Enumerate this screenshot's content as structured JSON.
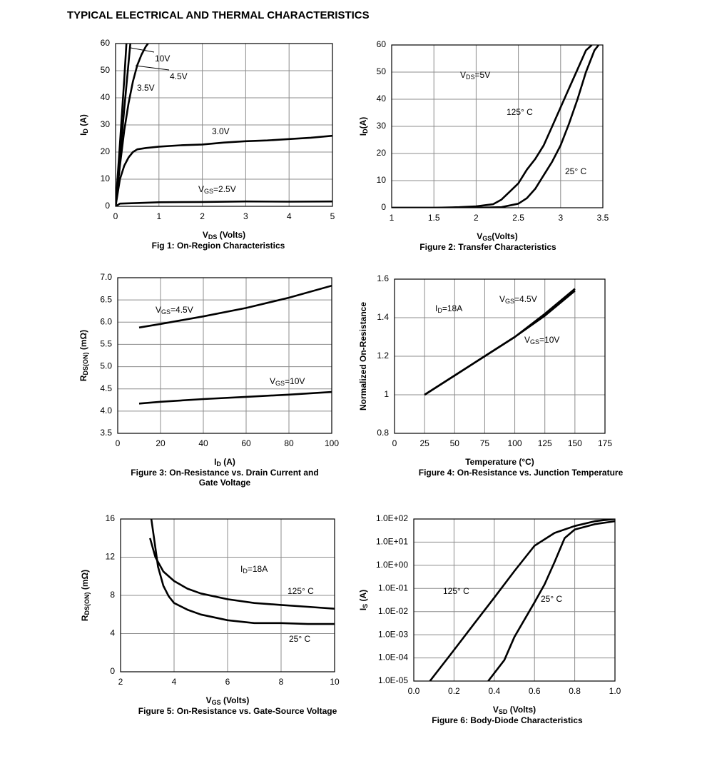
{
  "title": "TYPICAL ELECTRICAL AND THERMAL CHARACTERISTICS",
  "chart_data": [
    {
      "type": "line",
      "title": [
        "Fig 1: On-Region Characteristics"
      ],
      "xlabel": [
        "V",
        "DS",
        " (Volts)"
      ],
      "ylabel": [
        "I",
        "D",
        " (A)"
      ],
      "xlim": [
        0,
        5
      ],
      "ylim": [
        0,
        60
      ],
      "xticks": [
        0,
        1,
        2,
        3,
        4,
        5
      ],
      "yticks": [
        0,
        10,
        20,
        30,
        40,
        50,
        60
      ],
      "grid": true,
      "series": [
        {
          "name": [
            "10V"
          ],
          "color": "#000000",
          "x": [
            0,
            0.1,
            0.2,
            0.25
          ],
          "values": [
            0,
            23,
            47,
            60
          ]
        },
        {
          "name": [
            "4.5V"
          ],
          "color": "#000000",
          "x": [
            0,
            0.1,
            0.2,
            0.3,
            0.34
          ],
          "values": [
            0,
            18,
            36,
            53,
            60
          ]
        },
        {
          "name": [
            "3.5V"
          ],
          "color": "#000000",
          "x": [
            0,
            0.1,
            0.2,
            0.3,
            0.4,
            0.5,
            0.6,
            0.7,
            0.75
          ],
          "values": [
            0,
            15,
            28,
            38,
            46,
            52,
            56,
            59,
            60
          ]
        },
        {
          "name": [
            "3.0V"
          ],
          "color": "#000000",
          "x": [
            0,
            0.1,
            0.2,
            0.3,
            0.4,
            0.5,
            0.7,
            1,
            1.5,
            2,
            2.5,
            3,
            3.5,
            4,
            4.5,
            5
          ],
          "values": [
            0,
            10,
            15,
            18,
            20,
            21,
            21.5,
            22,
            22.5,
            22.8,
            23.5,
            24,
            24.3,
            24.8,
            25.3,
            26
          ]
        },
        {
          "name": [
            "V",
            "GS",
            "=2.5V"
          ],
          "color": "#000000",
          "x": [
            0,
            0.1,
            0.5,
            1,
            2,
            3,
            4,
            5
          ],
          "values": [
            0,
            1,
            1.2,
            1.5,
            1.6,
            1.8,
            1.7,
            1.8
          ]
        }
      ]
    },
    {
      "type": "line",
      "title": [
        "Figure 2: Transfer Characteristics"
      ],
      "xlabel": [
        "V",
        "GS",
        "(Volts)"
      ],
      "ylabel": [
        "I",
        "D",
        "(A)"
      ],
      "xlim": [
        1,
        3.5
      ],
      "ylim": [
        0,
        60
      ],
      "xticks": [
        1,
        1.5,
        2,
        2.5,
        3,
        3.5
      ],
      "yticks": [
        0,
        10,
        20,
        30,
        40,
        50,
        60
      ],
      "grid": true,
      "annotations": [
        [
          "V",
          "DS",
          "=5V"
        ]
      ],
      "series": [
        {
          "name": [
            "125° C"
          ],
          "color": "#000000",
          "x": [
            1,
            1.5,
            1.8,
            2,
            2.2,
            2.3,
            2.4,
            2.5,
            2.6,
            2.7,
            2.8,
            2.9,
            3,
            3.1,
            3.2,
            3.3,
            3.37
          ],
          "values": [
            0,
            0,
            0.2,
            0.5,
            1.3,
            3,
            6,
            9,
            14,
            18,
            23,
            30,
            37,
            44,
            51,
            58,
            60
          ]
        },
        {
          "name": [
            "25° C"
          ],
          "color": "#000000",
          "x": [
            1,
            2,
            2.3,
            2.5,
            2.6,
            2.7,
            2.8,
            2.9,
            3,
            3.1,
            3.2,
            3.3,
            3.4,
            3.45
          ],
          "values": [
            0,
            0,
            0.2,
            1.5,
            3.5,
            7,
            12,
            17,
            23,
            31,
            40,
            50,
            58,
            60
          ]
        }
      ]
    },
    {
      "type": "line",
      "title": [
        "Figure 3: On-Resistance vs. Drain Current and",
        "Gate Voltage"
      ],
      "xlabel": [
        "I",
        "D",
        " (A)"
      ],
      "ylabel": [
        "R",
        "DS(ON)",
        " (mΩ)"
      ],
      "xlim": [
        0,
        100
      ],
      "ylim": [
        3.5,
        7.0
      ],
      "xticks": [
        0,
        20,
        40,
        60,
        80,
        100
      ],
      "yticks": [
        3.5,
        {
          "value": 4.0,
          "label": "4.0"
        },
        4.5,
        {
          "value": 5.0,
          "label": "5.0"
        },
        5.5,
        {
          "value": 6.0,
          "label": "6.0"
        },
        6.5,
        {
          "value": 7.0,
          "label": "7.0"
        }
      ],
      "grid": true,
      "series": [
        {
          "name": [
            "V",
            "GS",
            "=4.5V"
          ],
          "color": "#000000",
          "x": [
            10,
            20,
            40,
            60,
            80,
            100
          ],
          "values": [
            5.88,
            5.96,
            6.13,
            6.32,
            6.55,
            6.82
          ]
        },
        {
          "name": [
            "V",
            "GS",
            "=10V"
          ],
          "color": "#000000",
          "x": [
            10,
            20,
            40,
            60,
            80,
            100
          ],
          "values": [
            4.17,
            4.21,
            4.27,
            4.32,
            4.37,
            4.43
          ]
        }
      ]
    },
    {
      "type": "line",
      "title": [
        "Figure 4: On-Resistance vs. Junction Temperature"
      ],
      "xlabel": [
        "Temperature (°C)"
      ],
      "ylabel": [
        "Normalized On-Resistance"
      ],
      "xlim": [
        0,
        175
      ],
      "ylim": [
        0.8,
        1.6
      ],
      "xticks": [
        0,
        25,
        50,
        75,
        100,
        125,
        150,
        175
      ],
      "yticks": [
        0.8,
        1,
        1.2,
        1.4,
        1.6
      ],
      "grid": true,
      "annotations": [
        [
          "I",
          "D",
          "=18A"
        ]
      ],
      "series": [
        {
          "name": [
            "V",
            "GS",
            "=4.5V"
          ],
          "color": "#000000",
          "x": [
            25,
            50,
            75,
            100,
            125,
            150
          ],
          "values": [
            1.0,
            1.1,
            1.2,
            1.3,
            1.42,
            1.55
          ]
        },
        {
          "name": [
            "V",
            "GS",
            "=10V"
          ],
          "color": "#000000",
          "x": [
            25,
            50,
            75,
            100,
            125,
            150
          ],
          "values": [
            1.0,
            1.1,
            1.2,
            1.3,
            1.41,
            1.54
          ]
        }
      ]
    },
    {
      "type": "line",
      "title": [
        "Figure 5: On-Resistance vs. Gate-Source Voltage"
      ],
      "xlabel": [
        "V",
        "GS",
        " (Volts)"
      ],
      "ylabel": [
        "R",
        "DS(ON)",
        " (mΩ)"
      ],
      "xlim": [
        2,
        10
      ],
      "ylim": [
        0,
        16
      ],
      "xticks": [
        2,
        4,
        6,
        8,
        10
      ],
      "yticks": [
        0,
        4,
        8,
        12,
        16
      ],
      "grid": true,
      "annotations": [
        [
          "I",
          "D",
          "=18A"
        ]
      ],
      "series": [
        {
          "name": [
            "125° C"
          ],
          "color": "#000000",
          "x": [
            3.1,
            3.3,
            3.6,
            4,
            4.5,
            5,
            6,
            7,
            8,
            9,
            10
          ],
          "values": [
            14,
            12,
            10.5,
            9.5,
            8.7,
            8.2,
            7.6,
            7.2,
            7.0,
            6.8,
            6.6
          ]
        },
        {
          "name": [
            "25° C"
          ],
          "color": "#000000",
          "x": [
            3.15,
            3.25,
            3.4,
            3.6,
            3.8,
            4,
            4.5,
            5,
            6,
            7,
            8,
            9,
            10
          ],
          "values": [
            16,
            14,
            11,
            9,
            7.9,
            7.2,
            6.5,
            6.0,
            5.4,
            5.1,
            5.1,
            5.0,
            5.0
          ]
        }
      ]
    },
    {
      "type": "line",
      "title": [
        "Figure 6: Body-Diode Characteristics"
      ],
      "xlabel": [
        "V",
        "SD",
        " (Volts)"
      ],
      "ylabel": [
        "I",
        "S",
        " (A)"
      ],
      "yscale": "log",
      "xlim": [
        0,
        1
      ],
      "ylim": [
        1e-05,
        100
      ],
      "xticks": [
        {
          "value": 0,
          "label": "0.0"
        },
        0.2,
        0.4,
        0.6,
        0.8,
        {
          "value": 1,
          "label": "1.0"
        }
      ],
      "yticks": [
        {
          "value": 1e-05,
          "label": "1.0E-05"
        },
        {
          "value": 0.0001,
          "label": "1.0E-04"
        },
        {
          "value": 0.001,
          "label": "1.0E-03"
        },
        {
          "value": 0.01,
          "label": "1.0E-02"
        },
        {
          "value": 0.1,
          "label": "1.0E-01"
        },
        {
          "value": 1,
          "label": "1.0E+00"
        },
        {
          "value": 10,
          "label": "1.0E+01"
        },
        {
          "value": 100,
          "label": "1.0E+02"
        }
      ],
      "grid": true,
      "series": [
        {
          "name": [
            "125° C"
          ],
          "color": "#000000",
          "x": [
            0.08,
            0.2,
            0.3,
            0.4,
            0.5,
            0.6,
            0.7,
            0.8,
            0.9,
            1.0
          ],
          "values": [
            1e-05,
            0.00022,
            0.003,
            0.04,
            0.56,
            7,
            25,
            50,
            80,
            100
          ]
        },
        {
          "name": [
            "25° C"
          ],
          "color": "#000000",
          "x": [
            0.37,
            0.45,
            0.5,
            0.6,
            0.65,
            0.7,
            0.75,
            0.8,
            0.9,
            1.0
          ],
          "values": [
            1e-05,
            8e-05,
            0.0008,
            0.025,
            0.15,
            1.4,
            15,
            35,
            60,
            80
          ]
        }
      ]
    }
  ]
}
